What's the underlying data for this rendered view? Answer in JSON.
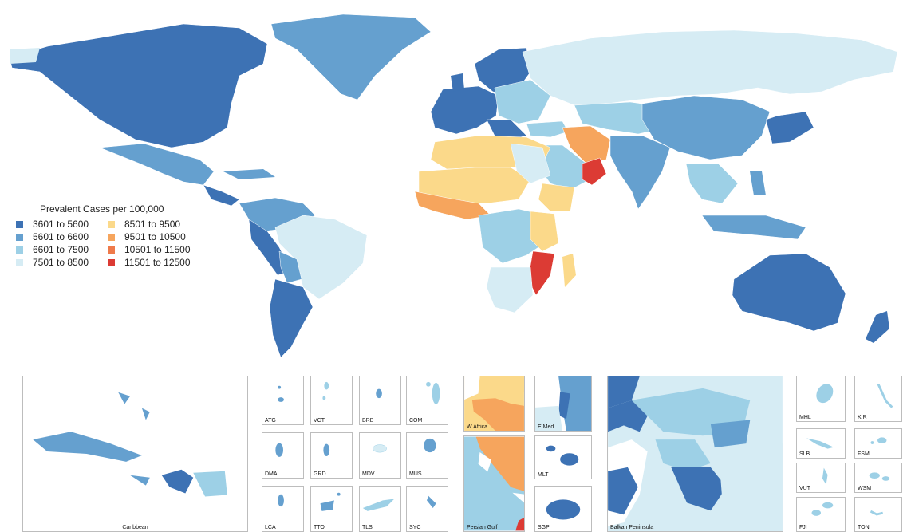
{
  "legend": {
    "title": "Prevalent Cases per 100,000",
    "items": [
      {
        "label": "3601 to 5600",
        "color": "#3d72b4"
      },
      {
        "label": "5601 to 6600",
        "color": "#65a0cf"
      },
      {
        "label": "6601 to 7500",
        "color": "#9dd0e6"
      },
      {
        "label": "7501 to 8500",
        "color": "#d6ecf4"
      },
      {
        "label": "8501 to 9500",
        "color": "#fbd98a"
      },
      {
        "label": "9501 to 10500",
        "color": "#f6a55d"
      },
      {
        "label": "10501 to 11500",
        "color": "#ef7a4a"
      },
      {
        "label": "11501 to 12500",
        "color": "#dc3b34"
      }
    ]
  },
  "insets": {
    "caribbean": "Caribbean",
    "atg": "ATG",
    "vct": "VCT",
    "brb": "BRB",
    "com": "COM",
    "dma": "DMA",
    "grd": "GRD",
    "mdv": "MDV",
    "mus": "MUS",
    "lca": "LCA",
    "tto": "TTO",
    "tls": "TLS",
    "syc": "SYC",
    "w_africa": "W Africa",
    "e_med": "E Med.",
    "persian_gulf": "Persian Gulf",
    "mlt": "MLT",
    "sgp": "SGP",
    "balkan": "Balkan Peninsula",
    "mhl": "MHL",
    "kir": "KIR",
    "slb": "SLB",
    "fsm": "FSM",
    "vut": "VUT",
    "wsm": "WSM",
    "fji": "FJI",
    "ton": "TON"
  }
}
